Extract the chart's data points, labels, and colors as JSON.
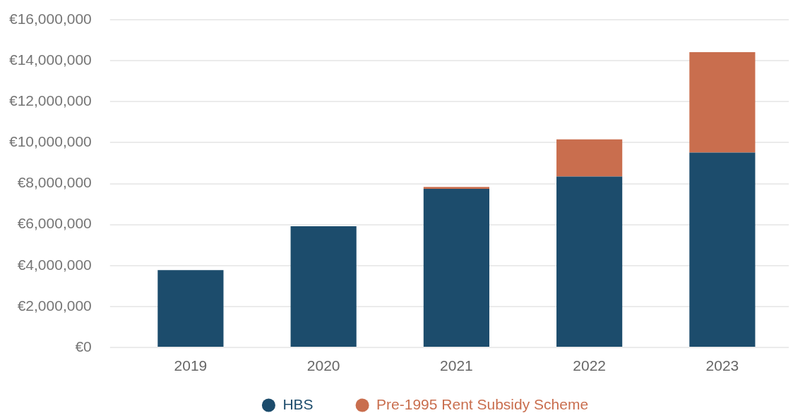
{
  "chart_data": {
    "type": "bar",
    "stacked": true,
    "categories": [
      "2019",
      "2020",
      "2021",
      "2022",
      "2023"
    ],
    "series": [
      {
        "name": "HBS",
        "color": "#1c4c6c",
        "values": [
          3780000,
          5920000,
          7740000,
          8340000,
          9510000
        ]
      },
      {
        "name": "Pre-1995 Rent Subsidy Scheme",
        "color": "#c96e4e",
        "values": [
          null,
          null,
          100000,
          1820000,
          4910000
        ]
      }
    ],
    "ylim": [
      0,
      16000000
    ],
    "yticks": [
      {
        "value": 0,
        "label": "€0"
      },
      {
        "value": 2000000,
        "label": "€2,000,000"
      },
      {
        "value": 4000000,
        "label": "€4,000,000"
      },
      {
        "value": 6000000,
        "label": "€6,000,000"
      },
      {
        "value": 8000000,
        "label": "€8,000,000"
      },
      {
        "value": 10000000,
        "label": "€10,000,000"
      },
      {
        "value": 12000000,
        "label": "€12,000,000"
      },
      {
        "value": 14000000,
        "label": "€14,000,000"
      },
      {
        "value": 16000000,
        "label": "€16,000,000"
      }
    ],
    "grid": "y",
    "legend": "bottom"
  }
}
